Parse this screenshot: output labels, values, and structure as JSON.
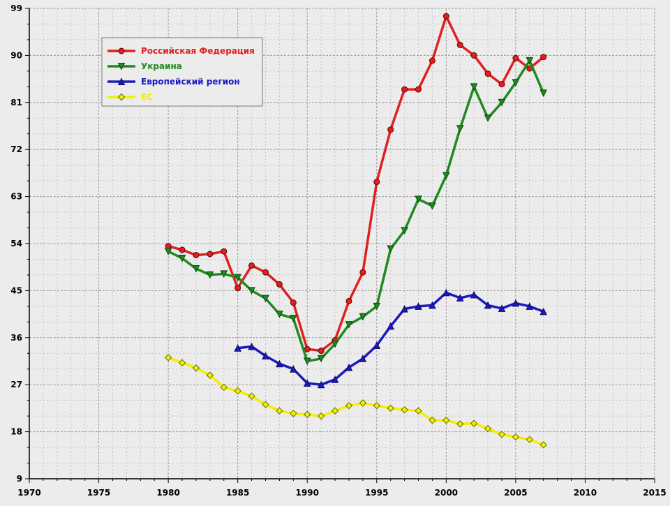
{
  "chart_data": {
    "type": "line",
    "title": "",
    "xlabel": "",
    "ylabel": "",
    "xlim": [
      1970,
      2015
    ],
    "ylim": [
      9,
      99
    ],
    "x_ticks": [
      "1970",
      "1975",
      "1980",
      "1985",
      "1990",
      "1995",
      "2000",
      "2005",
      "2010",
      "2015"
    ],
    "y_ticks": [
      "9",
      "18",
      "27",
      "36",
      "45",
      "54",
      "63",
      "72",
      "81",
      "90",
      "99"
    ],
    "grid": true,
    "legend_position": "top-left",
    "series": [
      {
        "name": "Российская Федерация",
        "color": "#e02020",
        "marker": "circle",
        "points": [
          [
            1980,
            53.5
          ],
          [
            1981,
            52.8
          ],
          [
            1982,
            51.8
          ],
          [
            1983,
            52.0
          ],
          [
            1984,
            52.5
          ],
          [
            1985,
            45.5
          ],
          [
            1986,
            49.8
          ],
          [
            1987,
            48.5
          ],
          [
            1988,
            46.2
          ],
          [
            1989,
            42.7
          ],
          [
            1990,
            33.8
          ],
          [
            1991,
            33.5
          ],
          [
            1992,
            35.5
          ],
          [
            1993,
            43.0
          ],
          [
            1994,
            48.5
          ],
          [
            1995,
            65.8
          ],
          [
            1996,
            75.8
          ],
          [
            1997,
            83.5
          ],
          [
            1998,
            83.5
          ],
          [
            1999,
            89.0
          ],
          [
            2000,
            97.5
          ],
          [
            2001,
            92.0
          ],
          [
            2002,
            90.0
          ],
          [
            2003,
            86.5
          ],
          [
            2004,
            84.5
          ],
          [
            2005,
            89.5
          ],
          [
            2006,
            87.5
          ],
          [
            2007,
            89.7
          ]
        ]
      },
      {
        "name": "Украина",
        "color": "#1f8a1f",
        "marker": "triangle-down",
        "points": [
          [
            1980,
            52.5
          ],
          [
            1981,
            51.2
          ],
          [
            1982,
            49.2
          ],
          [
            1983,
            48.0
          ],
          [
            1984,
            48.2
          ],
          [
            1985,
            47.5
          ],
          [
            1986,
            45.0
          ],
          [
            1987,
            43.5
          ],
          [
            1988,
            40.5
          ],
          [
            1989,
            39.7
          ],
          [
            1990,
            31.5
          ],
          [
            1991,
            32.0
          ],
          [
            1992,
            34.8
          ],
          [
            1993,
            38.5
          ],
          [
            1994,
            40.0
          ],
          [
            1995,
            42.0
          ],
          [
            1996,
            53.0
          ],
          [
            1997,
            56.5
          ],
          [
            1998,
            62.5
          ],
          [
            1999,
            61.2
          ],
          [
            2000,
            67.0
          ],
          [
            2001,
            76.0
          ],
          [
            2002,
            84.0
          ],
          [
            2003,
            78.0
          ],
          [
            2004,
            81.0
          ],
          [
            2005,
            84.8
          ],
          [
            2006,
            89.0
          ],
          [
            2007,
            82.8
          ]
        ]
      },
      {
        "name": "Европейский регион",
        "color": "#1a1ac0",
        "marker": "triangle-up",
        "points": [
          [
            1985,
            34.0
          ],
          [
            1986,
            34.3
          ],
          [
            1987,
            32.5
          ],
          [
            1988,
            31.0
          ],
          [
            1989,
            30.0
          ],
          [
            1990,
            27.3
          ],
          [
            1991,
            27.0
          ],
          [
            1992,
            28.0
          ],
          [
            1993,
            30.3
          ],
          [
            1994,
            32.0
          ],
          [
            1995,
            34.5
          ],
          [
            1996,
            38.2
          ],
          [
            1997,
            41.5
          ],
          [
            1998,
            42.0
          ],
          [
            1999,
            42.2
          ],
          [
            2000,
            44.6
          ],
          [
            2001,
            43.6
          ],
          [
            2002,
            44.2
          ],
          [
            2003,
            42.2
          ],
          [
            2004,
            41.6
          ],
          [
            2005,
            42.6
          ],
          [
            2006,
            42.0
          ],
          [
            2007,
            41.0
          ]
        ]
      },
      {
        "name": "ЕС",
        "color": "#f0f000",
        "marker": "diamond",
        "points": [
          [
            1980,
            32.2
          ],
          [
            1981,
            31.2
          ],
          [
            1982,
            30.2
          ],
          [
            1983,
            28.8
          ],
          [
            1984,
            26.5
          ],
          [
            1985,
            25.8
          ],
          [
            1986,
            24.8
          ],
          [
            1987,
            23.2
          ],
          [
            1988,
            22.0
          ],
          [
            1989,
            21.5
          ],
          [
            1990,
            21.3
          ],
          [
            1991,
            21.0
          ],
          [
            1992,
            22.0
          ],
          [
            1993,
            23.0
          ],
          [
            1994,
            23.5
          ],
          [
            1995,
            23.0
          ],
          [
            1996,
            22.5
          ],
          [
            1997,
            22.2
          ],
          [
            1998,
            22.0
          ],
          [
            1999,
            20.2
          ],
          [
            2000,
            20.2
          ],
          [
            2001,
            19.5
          ],
          [
            2002,
            19.6
          ],
          [
            2003,
            18.6
          ],
          [
            2004,
            17.5
          ],
          [
            2005,
            17.0
          ],
          [
            2006,
            16.5
          ],
          [
            2007,
            15.5
          ]
        ]
      }
    ]
  }
}
